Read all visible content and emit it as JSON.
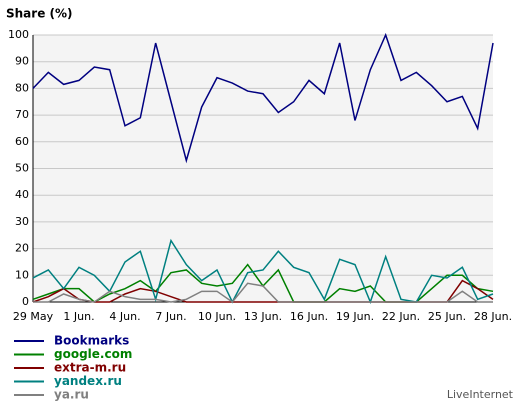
{
  "chart_data": {
    "type": "line",
    "title": "Share (%)",
    "footer": "LiveInternet",
    "categories": [
      "29 May",
      null,
      null,
      "1 Jun.",
      null,
      null,
      "4 Jun.",
      null,
      null,
      "7 Jun.",
      null,
      null,
      "10 Jun.",
      null,
      null,
      "13 Jun.",
      null,
      null,
      "16 Jun.",
      null,
      null,
      "19 Jun.",
      null,
      null,
      "22 Jun.",
      null,
      null,
      "25 Jun.",
      null,
      null,
      "28 Jun."
    ],
    "series": [
      {
        "name": "Bookmarks",
        "color": "#000080",
        "values": [
          80,
          86,
          81.5,
          83,
          88,
          87,
          66,
          69,
          97,
          75,
          53,
          73,
          84,
          82,
          79,
          78,
          71,
          75,
          83,
          78,
          97,
          68,
          87,
          100,
          83,
          86,
          81,
          75,
          77,
          65,
          97
        ]
      },
      {
        "name": "google.com",
        "color": "#008000",
        "values": [
          1,
          3,
          5,
          5,
          0,
          3,
          5,
          8,
          4,
          11,
          12,
          7,
          6,
          7,
          14,
          6,
          12,
          0,
          0,
          0,
          5,
          4,
          6,
          0,
          0,
          0,
          5,
          10,
          10,
          5,
          4
        ]
      },
      {
        "name": "extra-m.ru",
        "color": "#800000",
        "values": [
          0,
          2,
          5,
          1,
          0,
          0,
          3,
          5,
          4,
          2,
          0,
          0,
          0,
          0,
          0,
          0,
          0,
          0,
          0,
          0,
          0,
          0,
          0,
          0,
          0,
          0,
          0,
          0,
          8,
          5,
          1
        ]
      },
      {
        "name": "yandex.ru",
        "color": "#008080",
        "values": [
          9,
          12,
          5,
          13,
          10,
          4,
          15,
          19,
          1,
          23,
          14,
          8,
          12,
          0,
          11,
          12,
          19,
          13,
          11,
          1,
          16,
          14,
          0,
          17,
          1,
          0,
          10,
          9,
          13,
          1,
          3
        ]
      },
      {
        "name": "ya.ru",
        "color": "#808080",
        "values": [
          0,
          0,
          3,
          1,
          0,
          4,
          2,
          1,
          1,
          0,
          1,
          4,
          4,
          0,
          7,
          6,
          0,
          0,
          0,
          0,
          0,
          0,
          0,
          0,
          0,
          0,
          0,
          0,
          4,
          0,
          0
        ]
      }
    ],
    "ylim": [
      0,
      100
    ],
    "yticks": [
      0,
      10,
      20,
      30,
      40,
      50,
      60,
      70,
      80,
      90,
      100
    ],
    "grid": true
  }
}
